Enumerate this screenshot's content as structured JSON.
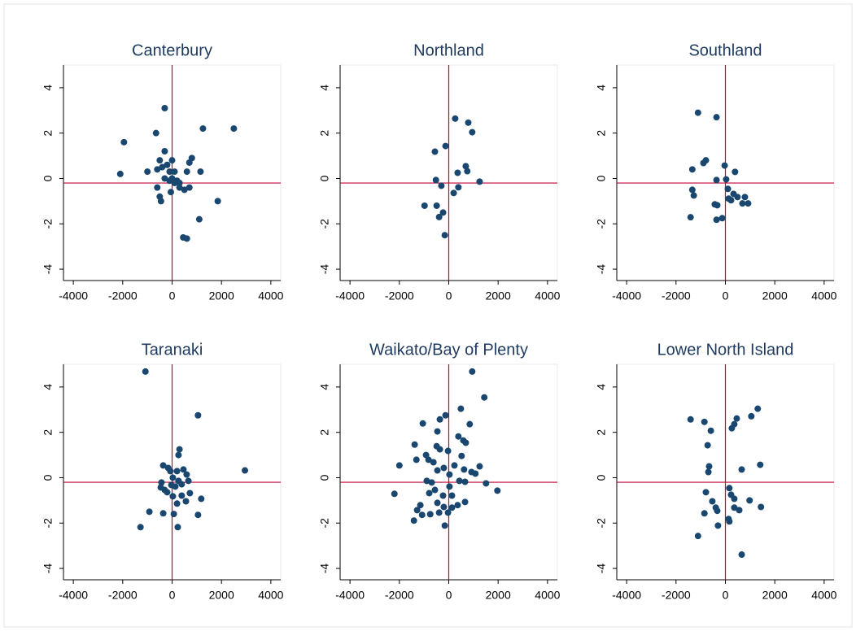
{
  "chart_data": [
    {
      "type": "scatter",
      "title": "Canterbury",
      "color": "#1a476f",
      "ref_lines": {
        "x": 0,
        "y": -0.2,
        "color": "#c10534"
      },
      "xlim": [
        -4400,
        4400
      ],
      "ylim": [
        -4.5,
        5
      ],
      "xticks": [
        -4000,
        -2000,
        0,
        2000,
        4000
      ],
      "yticks": [
        -4,
        -2,
        0,
        2,
        4
      ],
      "x": [
        -2100,
        -1950,
        -300,
        -650,
        -1000,
        1250,
        2500,
        1850,
        1100,
        450,
        600,
        1150,
        -300,
        800,
        700,
        -500,
        -400,
        -200,
        0,
        100,
        -100,
        -300,
        -100,
        100,
        300,
        600,
        500,
        700,
        -600,
        -500,
        -450,
        -50,
        300,
        -600,
        0,
        200
      ],
      "values": [
        0.2,
        1.6,
        3.1,
        2.0,
        0.3,
        2.2,
        2.2,
        -1.0,
        -1.8,
        -2.6,
        -2.65,
        0.3,
        1.2,
        0.9,
        0.7,
        0.8,
        0.5,
        0.6,
        0.8,
        0.3,
        0.3,
        0.0,
        -0.1,
        -0.2,
        -0.2,
        0.3,
        -0.5,
        -0.4,
        -0.4,
        -0.8,
        -1.0,
        -0.6,
        -0.4,
        0.4,
        0.0,
        -0.1
      ]
    },
    {
      "type": "scatter",
      "title": "Northland",
      "color": "#1a476f",
      "ref_lines": {
        "x": 0,
        "y": -0.2,
        "color": "#c10534"
      },
      "xlim": [
        -4400,
        4400
      ],
      "ylim": [
        -4.5,
        5
      ],
      "xticks": [
        -4000,
        -2000,
        0,
        2000,
        4000
      ],
      "yticks": [
        -4,
        -2,
        0,
        2,
        4
      ],
      "x": [
        -130,
        260,
        790,
        950,
        -560,
        690,
        750,
        360,
        1250,
        -520,
        -300,
        390,
        200,
        -980,
        -490,
        -230,
        -390,
        -160
      ],
      "values": [
        1.43,
        2.64,
        2.46,
        2.04,
        1.18,
        0.54,
        0.32,
        0.25,
        -0.14,
        -0.07,
        -0.32,
        -0.39,
        -0.64,
        -1.2,
        -1.2,
        -1.5,
        -1.7,
        -2.5
      ]
    },
    {
      "type": "scatter",
      "title": "Southland",
      "color": "#1a476f",
      "ref_lines": {
        "x": 0,
        "y": -0.2,
        "color": "#c10534"
      },
      "xlim": [
        -4400,
        4400
      ],
      "ylim": [
        -4.5,
        5
      ],
      "xticks": [
        -4000,
        -2000,
        0,
        2000,
        4000
      ],
      "yticks": [
        -4,
        -2,
        0,
        2,
        4
      ],
      "x": [
        -1110,
        -360,
        -1340,
        -890,
        -790,
        -30,
        390,
        -360,
        30,
        -1340,
        -1280,
        100,
        330,
        130,
        230,
        -330,
        -430,
        490,
        790,
        690,
        920,
        -1410,
        -360,
        -130
      ],
      "values": [
        2.9,
        2.7,
        0.4,
        0.68,
        0.8,
        0.57,
        0.29,
        -0.07,
        -0.04,
        -0.5,
        -0.75,
        -0.46,
        -0.68,
        -0.89,
        -0.96,
        -1.18,
        -1.14,
        -0.82,
        -0.82,
        -1.1,
        -1.1,
        -1.71,
        -1.82,
        -1.75
      ]
    },
    {
      "type": "scatter",
      "title": "Taranaki",
      "color": "#1a476f",
      "ref_lines": {
        "x": 0,
        "y": -0.2,
        "color": "#c10534"
      },
      "xlim": [
        -4400,
        4400
      ],
      "ylim": [
        -4.5,
        5
      ],
      "xticks": [
        -4000,
        -2000,
        0,
        2000,
        4000
      ],
      "yticks": [
        -4,
        -2,
        0,
        2,
        4
      ],
      "x": [
        -1080,
        1050,
        2950,
        300,
        260,
        -920,
        -1280,
        230,
        -360,
        70,
        1050,
        1180,
        -360,
        -160,
        460,
        590,
        -430,
        -460,
        -70,
        200,
        30,
        260,
        390,
        660,
        -200,
        30,
        390,
        200,
        560,
        -300,
        130,
        720,
        -30
      ],
      "values": [
        4.68,
        2.75,
        0.32,
        1.25,
        1.0,
        -1.5,
        -2.18,
        -2.18,
        -1.57,
        -1.6,
        -1.64,
        -0.93,
        0.54,
        0.43,
        0.36,
        0.14,
        -0.21,
        -0.43,
        0.29,
        0.29,
        0,
        -0.14,
        -0.29,
        -0.14,
        -0.64,
        -0.82,
        -0.79,
        -1.14,
        -1.04,
        -0.54,
        -0.39,
        -0.68,
        -0.32
      ]
    },
    {
      "type": "scatter",
      "title": "Waikato/Bay of Plenty",
      "color": "#1a476f",
      "ref_lines": {
        "x": 0,
        "y": -0.2,
        "color": "#c10534"
      },
      "xlim": [
        -4400,
        4400
      ],
      "ylim": [
        -4.5,
        5
      ],
      "xticks": [
        -4000,
        -2000,
        0,
        2000,
        4000
      ],
      "yticks": [
        -4,
        -2,
        0,
        2,
        4
      ],
      "x": [
        950,
        1440,
        490,
        -130,
        -360,
        850,
        -1050,
        -460,
        390,
        590,
        690,
        -490,
        -1380,
        -30,
        -360,
        520,
        -920,
        -820,
        -620,
        -2000,
        -1310,
        -200,
        230,
        1250,
        920,
        620,
        1080,
        -460,
        30,
        -890,
        -690,
        430,
        660,
        1510,
        1970,
        -2200,
        30,
        -560,
        -790,
        -230,
        130,
        -1150,
        -1280,
        -1410,
        -1080,
        -750,
        -460,
        -200,
        -30,
        130,
        360,
        660,
        -160,
        -390
      ],
      "values": [
        4.68,
        3.54,
        3.04,
        2.75,
        2.57,
        2.36,
        2.39,
        2.04,
        1.82,
        1.64,
        1.54,
        1.39,
        1.46,
        1.18,
        1.25,
        0.96,
        1.0,
        0.79,
        0.68,
        0.54,
        0.79,
        0.43,
        0.54,
        0.5,
        0.25,
        0.36,
        0.18,
        0.32,
        0.14,
        -0.14,
        -0.21,
        -0.14,
        -0.18,
        -0.25,
        -0.57,
        -0.71,
        -0.39,
        -0.54,
        -0.68,
        -0.79,
        -0.79,
        -1.21,
        -1.43,
        -1.89,
        -1.64,
        -1.61,
        -1.11,
        -1.29,
        -1.54,
        -1.32,
        -1.21,
        -1.07,
        -2.11,
        -1.54
      ]
    },
    {
      "type": "scatter",
      "title": "Lower North Island",
      "color": "#1a476f",
      "ref_lines": {
        "x": 0,
        "y": -0.2,
        "color": "#c10534"
      },
      "xlim": [
        -4400,
        4400
      ],
      "ylim": [
        -4.5,
        5
      ],
      "xticks": [
        -4000,
        -2000,
        0,
        2000,
        4000
      ],
      "yticks": [
        -4,
        -2,
        0,
        2,
        4
      ],
      "x": [
        -1410,
        -850,
        -590,
        460,
        360,
        260,
        1310,
        1050,
        -720,
        -660,
        -690,
        660,
        1410,
        -790,
        160,
        230,
        980,
        360,
        -530,
        -390,
        -850,
        -330,
        360,
        560,
        1440,
        130,
        160,
        -1110,
        -300,
        660
      ],
      "values": [
        2.57,
        2.46,
        2.07,
        2.61,
        2.36,
        2.18,
        3.04,
        2.71,
        1.43,
        0.5,
        0.25,
        0.36,
        0.57,
        -0.64,
        -0.46,
        -0.75,
        -1.0,
        -0.93,
        -1.04,
        -1.32,
        -1.57,
        -1.46,
        -1.32,
        -1.43,
        -1.29,
        -1.82,
        -1.93,
        -2.57,
        -2.11,
        -3.39
      ]
    }
  ]
}
